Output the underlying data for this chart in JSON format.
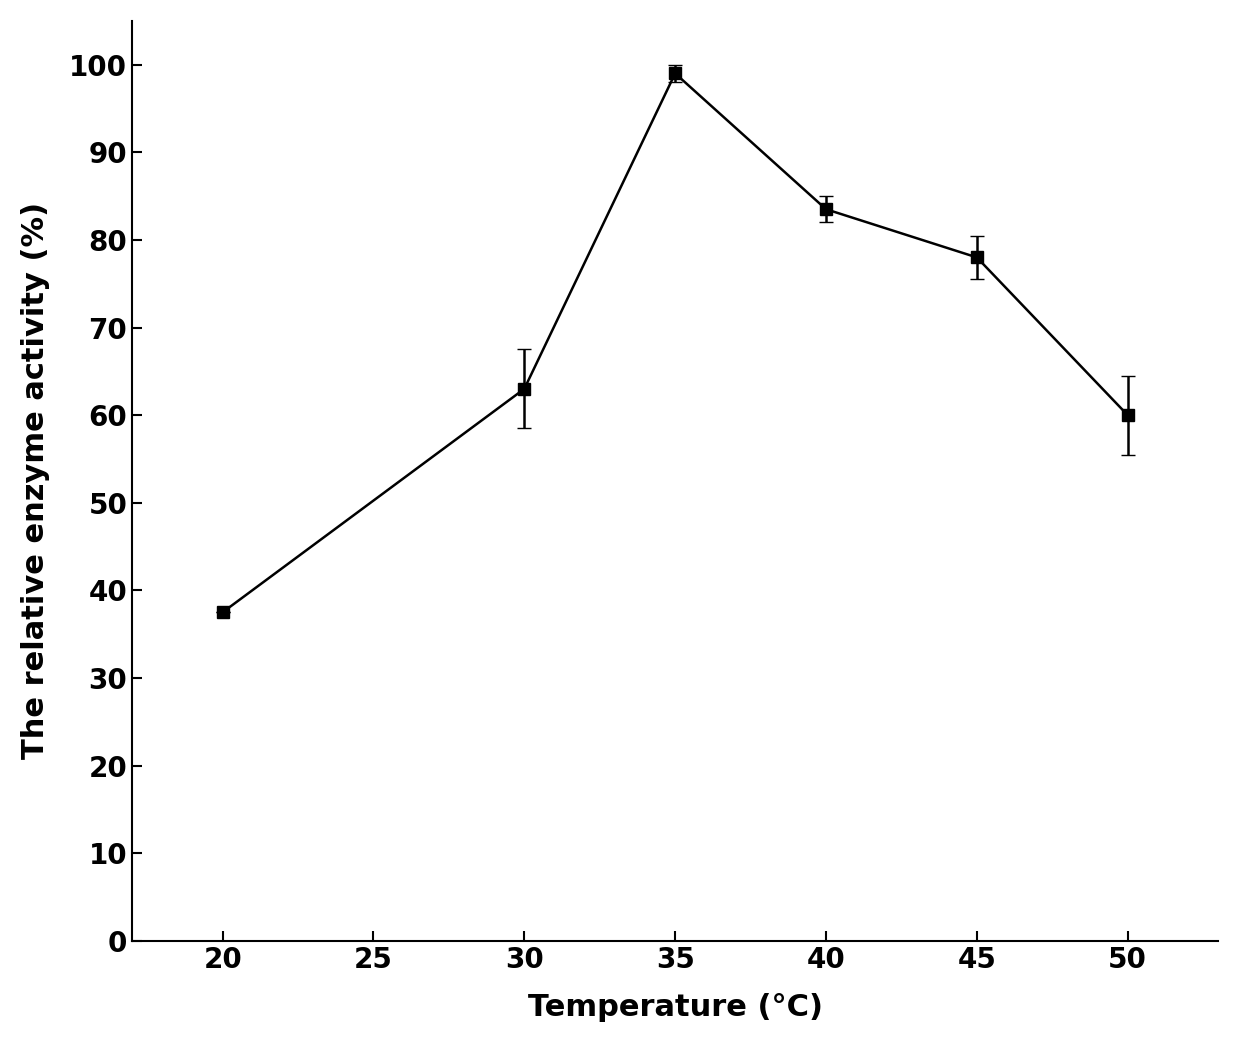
{
  "x": [
    20,
    30,
    35,
    40,
    45,
    50
  ],
  "y": [
    37.5,
    63.0,
    99.0,
    83.5,
    78.0,
    60.0
  ],
  "yerr": [
    0.0,
    4.5,
    1.0,
    1.5,
    2.5,
    4.5
  ],
  "xlabel": "Temperature (°C)",
  "ylabel": "The relative enzyme activity (%)",
  "xlim": [
    17,
    53
  ],
  "ylim": [
    0,
    105
  ],
  "xticks": [
    20,
    25,
    30,
    35,
    40,
    45,
    50
  ],
  "yticks": [
    0,
    10,
    20,
    30,
    40,
    50,
    60,
    70,
    80,
    90,
    100
  ],
  "marker": "s",
  "marker_size": 9,
  "line_color": "#000000",
  "marker_color": "#000000",
  "marker_edge_color": "#000000",
  "xlabel_fontsize": 22,
  "ylabel_fontsize": 22,
  "tick_fontsize": 20,
  "line_width": 1.8,
  "capsize": 5,
  "elinewidth": 1.8,
  "background_color": "#ffffff"
}
